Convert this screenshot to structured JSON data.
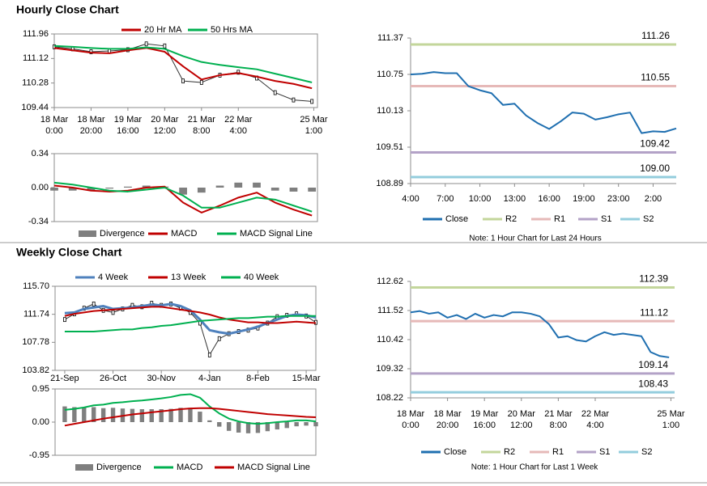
{
  "headings": [
    "Hourly Close Chart",
    "Weekly Close Chart"
  ],
  "chart_data": [
    {
      "type": "line",
      "x": [
        0,
        10,
        20,
        30,
        40,
        50,
        60,
        70,
        80,
        90,
        100,
        110,
        120,
        130,
        140
      ],
      "xlim": [
        0,
        143
      ],
      "xticks": [
        {
          "value": 0,
          "label": "18 Mar\n0:00"
        },
        {
          "value": 20,
          "label": "18 Mar\n20:00"
        },
        {
          "value": 40,
          "label": "19 Mar\n16:00"
        },
        {
          "value": 60,
          "label": "20 Mar\n12:00"
        },
        {
          "value": 80,
          "label": "21 Mar\n8:00"
        },
        {
          "value": 100,
          "label": "22 Mar\n4:00"
        },
        {
          "value": 141,
          "label": "25 Mar\n1:00"
        }
      ],
      "ylim": [
        109.44,
        111.96
      ],
      "yticks": [
        109.44,
        110.28,
        111.12,
        111.96
      ],
      "close": [
        111.52,
        111.45,
        111.35,
        111.38,
        111.42,
        111.62,
        111.55,
        110.35,
        110.3,
        110.55,
        110.65,
        110.45,
        109.95,
        109.7,
        109.65
      ],
      "series": [
        {
          "name": "20 Hr MA",
          "color": "#c00000",
          "values": [
            111.48,
            111.4,
            111.32,
            111.3,
            111.4,
            111.48,
            111.35,
            110.85,
            110.4,
            110.55,
            110.62,
            110.5,
            110.35,
            110.25,
            110.1
          ]
        },
        {
          "name": "50 Hrs MA",
          "color": "#00b050",
          "values": [
            111.55,
            111.52,
            111.48,
            111.45,
            111.45,
            111.5,
            111.45,
            111.2,
            111.0,
            110.9,
            110.82,
            110.75,
            110.6,
            110.45,
            110.3
          ]
        }
      ]
    },
    {
      "type": "line",
      "x": [
        0,
        10,
        20,
        30,
        40,
        50,
        60,
        70,
        80,
        90,
        100,
        110,
        120,
        130,
        140
      ],
      "xlim": [
        0,
        143
      ],
      "ylim": [
        -0.34,
        0.34
      ],
      "yticks": [
        -0.34,
        {
          "value": 0,
          "label": "0.00"
        },
        0.34
      ],
      "series": [
        {
          "name": "Divergence",
          "type": "bar",
          "color": "#7f7f7f",
          "values": [
            -0.03,
            -0.03,
            -0.03,
            -0.01,
            0.01,
            0.02,
            0.01,
            -0.07,
            -0.05,
            0.02,
            0.05,
            0.05,
            -0.03,
            -0.04,
            -0.04
          ]
        },
        {
          "name": "MACD",
          "color": "#c00000",
          "values": [
            0.02,
            0.0,
            -0.03,
            -0.04,
            -0.03,
            0.0,
            0.01,
            -0.15,
            -0.25,
            -0.18,
            -0.1,
            -0.05,
            -0.15,
            -0.22,
            -0.28
          ]
        },
        {
          "name": "MACD Signal Line",
          "color": "#00b050",
          "values": [
            0.05,
            0.03,
            0.0,
            -0.03,
            -0.04,
            -0.02,
            0.0,
            -0.08,
            -0.2,
            -0.2,
            -0.15,
            -0.1,
            -0.12,
            -0.18,
            -0.24
          ]
        }
      ]
    },
    {
      "type": "line",
      "x": [
        0,
        1,
        2,
        3,
        4,
        5,
        6,
        7,
        8,
        9,
        10,
        11,
        12,
        13,
        14,
        15,
        16,
        17,
        18,
        19,
        20,
        21,
        22,
        23
      ],
      "xlim": [
        0,
        23
      ],
      "xticks": [
        {
          "value": 0,
          "label": "4:00"
        },
        {
          "value": 3,
          "label": "7:00"
        },
        {
          "value": 6,
          "label": "10:00"
        },
        {
          "value": 9,
          "label": "13:00"
        },
        {
          "value": 12,
          "label": "16:00"
        },
        {
          "value": 15,
          "label": "19:00"
        },
        {
          "value": 18,
          "label": "23:00"
        },
        {
          "value": 21,
          "label": "2:00"
        }
      ],
      "ylim": [
        108.89,
        111.37
      ],
      "yticks": [
        108.89,
        109.51,
        110.13,
        110.75,
        111.37
      ],
      "series": [
        {
          "name": "Close",
          "color": "#1f6fb0",
          "values": [
            110.75,
            110.76,
            110.79,
            110.77,
            110.77,
            110.55,
            110.48,
            110.43,
            110.23,
            110.25,
            110.05,
            109.92,
            109.82,
            109.95,
            110.1,
            110.08,
            109.98,
            110.02,
            110.07,
            110.1,
            109.75,
            109.78,
            109.77,
            109.83
          ]
        }
      ],
      "levels": [
        {
          "name": "R2",
          "color": "#c3d69b",
          "value": 111.26
        },
        {
          "name": "R1",
          "color": "#e6b9b8",
          "value": 110.55
        },
        {
          "name": "S1",
          "color": "#b3a2c7",
          "value": 109.42
        },
        {
          "name": "S2",
          "color": "#93cddd",
          "value": 109.0,
          "value_label": "109.00"
        }
      ],
      "note": "Note: 1 Hour Chart for Last 24 Hours"
    },
    {
      "type": "line",
      "x": [
        0,
        1,
        2,
        3,
        4,
        5,
        6,
        7,
        8,
        9,
        10,
        11,
        12,
        13,
        14,
        15,
        16,
        17,
        18,
        19,
        20,
        21,
        22,
        23,
        24,
        25,
        26
      ],
      "xlim": [
        -1,
        26
      ],
      "xticks": [
        {
          "value": 0,
          "label": "21-Sep"
        },
        {
          "value": 5,
          "label": "26-Oct"
        },
        {
          "value": 10,
          "label": "30-Nov"
        },
        {
          "value": 15,
          "label": "4-Jan"
        },
        {
          "value": 20,
          "label": "8-Feb"
        },
        {
          "value": 25,
          "label": "15-Mar"
        }
      ],
      "ylim": [
        103.82,
        115.7
      ],
      "yticks": [
        103.82,
        107.78,
        111.74,
        {
          "value": 115.7,
          "label": "115.70"
        }
      ],
      "close": [
        111.0,
        111.8,
        112.6,
        113.2,
        112.3,
        112.0,
        112.5,
        113.0,
        112.8,
        113.3,
        113.0,
        113.2,
        112.6,
        112.0,
        110.5,
        106.0,
        108.3,
        109.0,
        109.3,
        109.5,
        109.8,
        110.5,
        111.4,
        111.6,
        111.8,
        111.5,
        110.6
      ],
      "series": [
        {
          "name": "4 Week",
          "color": "#4f81bd",
          "width": 3,
          "values": [
            111.9,
            112.0,
            112.5,
            112.7,
            112.9,
            112.5,
            112.6,
            112.7,
            112.9,
            113.1,
            113.0,
            113.2,
            112.9,
            112.3,
            111.0,
            109.5,
            109.2,
            109.0,
            109.3,
            109.6,
            110.0,
            110.5,
            111.0,
            111.5,
            111.7,
            111.6,
            111.3
          ]
        },
        {
          "name": "13 Week",
          "color": "#c00000",
          "values": [
            111.5,
            111.8,
            112.0,
            112.2,
            112.3,
            112.4,
            112.5,
            112.6,
            112.7,
            112.8,
            112.8,
            112.6,
            112.4,
            112.2,
            112.0,
            111.7,
            111.3,
            111.0,
            110.8,
            110.6,
            110.6,
            110.5,
            110.5,
            110.6,
            110.7,
            110.6,
            110.5
          ]
        },
        {
          "name": "40 Week",
          "color": "#00b050",
          "values": [
            109.3,
            109.3,
            109.3,
            109.3,
            109.4,
            109.5,
            109.6,
            109.6,
            109.8,
            109.9,
            110.1,
            110.2,
            110.4,
            110.6,
            110.8,
            110.9,
            111.0,
            111.1,
            111.2,
            111.2,
            111.3,
            111.4,
            111.4,
            111.5,
            111.5,
            111.5,
            111.5
          ]
        }
      ]
    },
    {
      "type": "line",
      "x": [
        0,
        1,
        2,
        3,
        4,
        5,
        6,
        7,
        8,
        9,
        10,
        11,
        12,
        13,
        14,
        15,
        16,
        17,
        18,
        19,
        20,
        21,
        22,
        23,
        24,
        25,
        26
      ],
      "xlim": [
        -1,
        26
      ],
      "ylim": [
        -0.95,
        0.95
      ],
      "yticks": [
        -0.95,
        {
          "value": 0,
          "label": "0.00"
        },
        0.95
      ],
      "series": [
        {
          "name": "Divergence",
          "type": "bar",
          "color": "#7f7f7f",
          "values": [
            0.45,
            0.43,
            0.42,
            0.43,
            0.4,
            0.41,
            0.39,
            0.38,
            0.37,
            0.37,
            0.37,
            0.38,
            0.41,
            0.41,
            0.3,
            0.05,
            -0.13,
            -0.25,
            -0.3,
            -0.32,
            -0.31,
            -0.26,
            -0.21,
            -0.17,
            -0.12,
            -0.1,
            -0.12
          ]
        },
        {
          "name": "MACD",
          "color": "#00b050",
          "values": [
            0.35,
            0.38,
            0.42,
            0.48,
            0.5,
            0.55,
            0.57,
            0.6,
            0.62,
            0.65,
            0.68,
            0.72,
            0.78,
            0.8,
            0.7,
            0.45,
            0.25,
            0.1,
            0.02,
            -0.03,
            -0.05,
            -0.03,
            0.0,
            0.02,
            0.05,
            0.05,
            0.02
          ]
        },
        {
          "name": "MACD Signal Line",
          "color": "#c00000",
          "values": [
            -0.1,
            -0.05,
            0.0,
            0.05,
            0.1,
            0.14,
            0.18,
            0.22,
            0.25,
            0.28,
            0.31,
            0.34,
            0.37,
            0.39,
            0.4,
            0.4,
            0.38,
            0.35,
            0.32,
            0.29,
            0.26,
            0.23,
            0.21,
            0.19,
            0.17,
            0.15,
            0.14
          ]
        }
      ]
    },
    {
      "type": "line",
      "x": [
        0,
        5,
        10,
        15,
        20,
        25,
        30,
        35,
        40,
        45,
        50,
        55,
        60,
        65,
        70,
        75,
        80,
        85,
        90,
        95,
        100,
        105,
        110,
        115,
        120,
        125,
        130,
        135,
        140
      ],
      "xlim": [
        0,
        143
      ],
      "xticks": [
        {
          "value": 0,
          "label": "18 Mar\n0:00"
        },
        {
          "value": 20,
          "label": "18 Mar\n20:00"
        },
        {
          "value": 40,
          "label": "19 Mar\n16:00"
        },
        {
          "value": 60,
          "label": "20 Mar\n12:00"
        },
        {
          "value": 80,
          "label": "21 Mar\n8:00"
        },
        {
          "value": 100,
          "label": "22 Mar\n4:00"
        },
        {
          "value": 141,
          "label": "25 Mar\n1:00"
        }
      ],
      "ylim": [
        108.22,
        112.62
      ],
      "yticks": [
        108.22,
        109.32,
        110.42,
        111.52,
        112.62
      ],
      "series": [
        {
          "name": "Close",
          "color": "#1f6fb0",
          "values": [
            111.45,
            111.5,
            111.4,
            111.45,
            111.25,
            111.35,
            111.2,
            111.4,
            111.25,
            111.35,
            111.3,
            111.45,
            111.45,
            111.4,
            111.3,
            111.0,
            110.5,
            110.55,
            110.4,
            110.35,
            110.55,
            110.7,
            110.6,
            110.65,
            110.6,
            110.55,
            109.95,
            109.8,
            109.75
          ]
        }
      ],
      "levels": [
        {
          "name": "R2",
          "color": "#c3d69b",
          "value": 112.39
        },
        {
          "name": "R1",
          "color": "#e6b9b8",
          "value": 111.12
        },
        {
          "name": "S1",
          "color": "#b3a2c7",
          "value": 109.14
        },
        {
          "name": "S2",
          "color": "#93cddd",
          "value": 108.43
        }
      ],
      "note": "Note: 1 Hour Chart for Last 1 Week"
    }
  ]
}
